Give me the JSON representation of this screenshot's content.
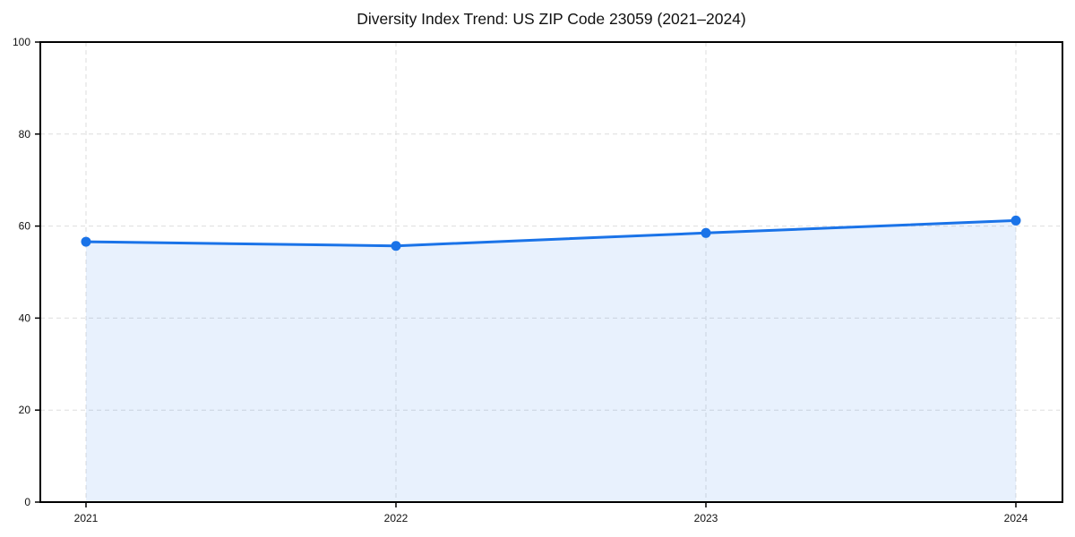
{
  "chart_data": {
    "type": "area",
    "title": "Diversity Index Trend: US ZIP Code 23059 (2021–2024)",
    "x": [
      "2021",
      "2022",
      "2023",
      "2024"
    ],
    "series": [
      {
        "name": "Diversity Index",
        "values": [
          56.6,
          55.7,
          58.5,
          61.2
        ]
      }
    ],
    "xlabel": "",
    "ylabel": "",
    "ylim": [
      0,
      100
    ],
    "yticks": [
      0,
      20,
      40,
      60,
      80,
      100
    ],
    "grid": true,
    "grid_style": "dashed",
    "legend_position": "none",
    "colors": {
      "line": "#1a73e8",
      "marker": "#1a73e8",
      "fill": "rgba(26,115,232,0.10)",
      "grid": "#dedede",
      "axis": "#000000",
      "title_text": "#111111",
      "tick_text": "#111111",
      "background": "#ffffff"
    }
  }
}
